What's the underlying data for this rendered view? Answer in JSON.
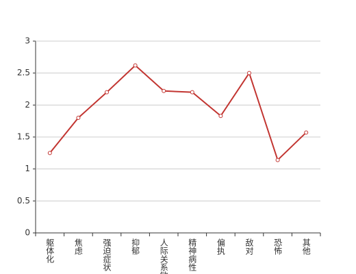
{
  "chart_data": {
    "type": "line",
    "categories": [
      "躯体化",
      "焦虑",
      "强迫症状",
      "抑郁",
      "人际关系敏感",
      "精神病性",
      "偏执",
      "敌对",
      "恐怖",
      "其他"
    ],
    "values": [
      1.25,
      1.8,
      2.2,
      2.62,
      2.22,
      2.2,
      1.83,
      2.5,
      1.14,
      1.57
    ],
    "color": "#c23531",
    "ylim": [
      0,
      3
    ],
    "yticks": [
      0,
      0.5,
      1,
      1.5,
      2,
      2.5,
      3
    ],
    "grid": true
  }
}
